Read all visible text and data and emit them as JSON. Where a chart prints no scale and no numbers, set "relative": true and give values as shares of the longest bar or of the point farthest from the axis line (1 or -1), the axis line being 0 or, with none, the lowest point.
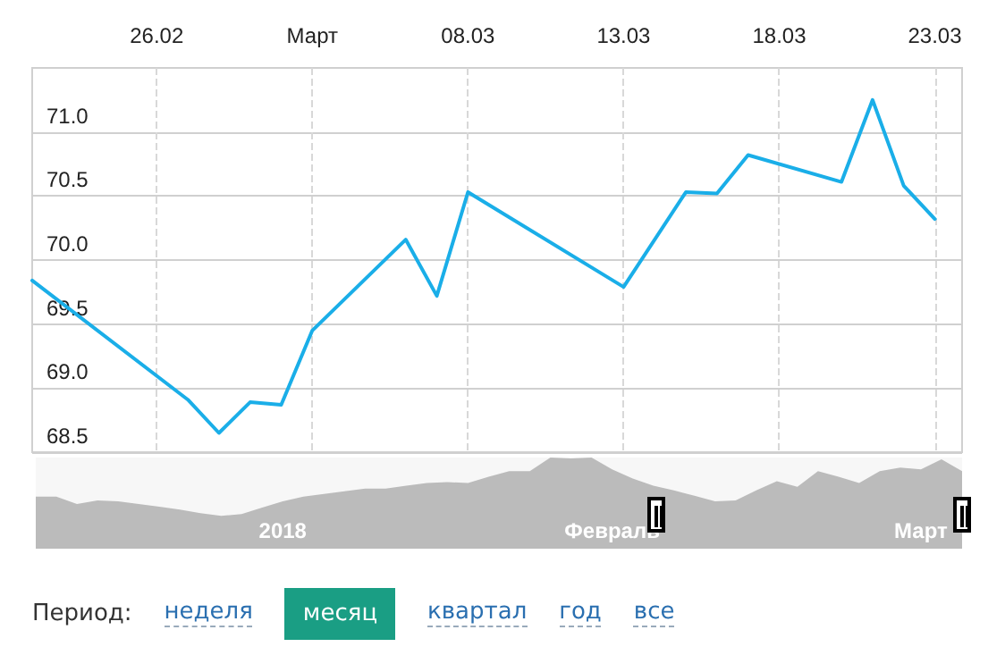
{
  "chart_data": [
    {
      "type": "line",
      "x": [
        "--02-22",
        "--02-27",
        "--02-28",
        "--03-01",
        "--03-02",
        "--03-03",
        "--03-06",
        "--03-07",
        "--03-08",
        "--03-13",
        "--03-15",
        "--03-16",
        "--03-17",
        "--03-20",
        "--03-21",
        "--03-22",
        "--03-23"
      ],
      "series": [
        {
          "color": "#1aaee8",
          "values": [
            69.84,
            68.91,
            68.65,
            68.89,
            68.87,
            69.45,
            70.16,
            69.72,
            70.53,
            69.79,
            70.53,
            70.52,
            70.82,
            70.61,
            71.25,
            70.58,
            70.32
          ]
        }
      ],
      "xlim": [
        "--02-22",
        "--03-23T21:00"
      ],
      "xticks": [
        {
          "value": "--02-26",
          "label": "26.02"
        },
        {
          "value": "--03-03",
          "label": "Март"
        },
        {
          "value": "--03-08",
          "label": "08.03"
        },
        {
          "value": "--03-13",
          "label": "13.03"
        },
        {
          "value": "--03-18",
          "label": "18.03"
        },
        {
          "value": "--03-23",
          "label": "23.03"
        }
      ],
      "ylim": [
        68.5,
        71.5
      ],
      "yticks": [
        {
          "value": 68.5,
          "label": "68.5"
        },
        {
          "value": 69,
          "label": "69.0"
        },
        {
          "value": 69.5,
          "label": "69.5"
        },
        {
          "value": 70,
          "label": "70.0"
        },
        {
          "value": 70.5,
          "label": "70.5"
        },
        {
          "value": 71,
          "label": "71.0"
        }
      ],
      "grid": true,
      "marker": "none",
      "line_style": "solid"
    },
    {
      "type": "area",
      "relative": true,
      "categories": [
        null,
        null,
        null,
        null,
        null,
        null,
        null,
        null,
        null,
        null,
        null,
        null,
        "2018",
        null,
        null,
        null,
        null,
        null,
        null,
        null,
        null,
        null,
        null,
        null,
        null,
        null,
        null,
        null,
        "Февраль",
        null,
        null,
        null,
        null,
        null,
        null,
        null,
        null,
        null,
        null,
        null,
        null,
        null,
        null,
        "Март",
        null,
        null
      ],
      "series": [
        {
          "color": "#bbbbbb",
          "values": [
            0.57,
            0.57,
            0.49,
            0.53,
            0.52,
            0.49,
            0.46,
            0.43,
            0.39,
            0.36,
            0.38,
            0.45,
            0.52,
            0.57,
            0.6,
            0.63,
            0.66,
            0.66,
            0.69,
            0.72,
            0.73,
            0.72,
            0.79,
            0.85,
            0.85,
            1,
            0.99,
            1,
            0.87,
            0.77,
            0.69,
            0.64,
            0.58,
            0.52,
            0.53,
            0.64,
            0.74,
            0.68,
            0.85,
            0.79,
            0.72,
            0.85,
            0.89,
            0.87,
            0.98,
            0.85
          ]
        }
      ],
      "annotations": [
        "Период:",
        "неделя",
        "месяц",
        "квартал",
        "год",
        "все"
      ]
    }
  ]
}
